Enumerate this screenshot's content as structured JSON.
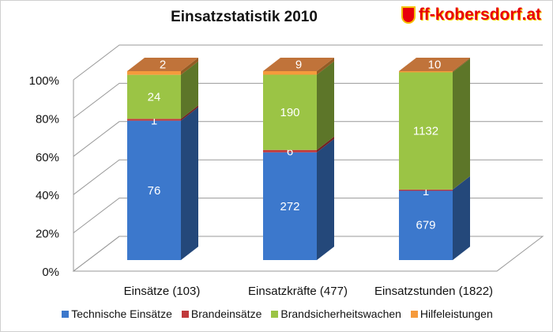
{
  "logo_text": "ff-kobersdorf.at",
  "chart_data": {
    "type": "bar",
    "stacked": "percent",
    "title": "Einsatzstatistik 2010",
    "categories": [
      "Einsätze (103)",
      "Einsatzkräfte (477)",
      "Einsatzstunden (1822)"
    ],
    "series": [
      {
        "name": "Technische Einsätze",
        "color": "#3c78cc",
        "values": [
          76,
          272,
          679
        ]
      },
      {
        "name": "Brandeinsätze",
        "color": "#c0393b",
        "values": [
          1,
          6,
          1
        ]
      },
      {
        "name": "Brandsicherheitswachen",
        "color": "#9bc445",
        "values": [
          24,
          190,
          1132
        ]
      },
      {
        "name": "Hilfeleistungen",
        "color": "#f59a3c",
        "values": [
          2,
          9,
          10
        ]
      }
    ],
    "yticks": [
      "0%",
      "20%",
      "40%",
      "60%",
      "80%",
      "100%"
    ],
    "ylim": [
      0,
      100
    ],
    "grid": true,
    "legend": "bottom"
  }
}
